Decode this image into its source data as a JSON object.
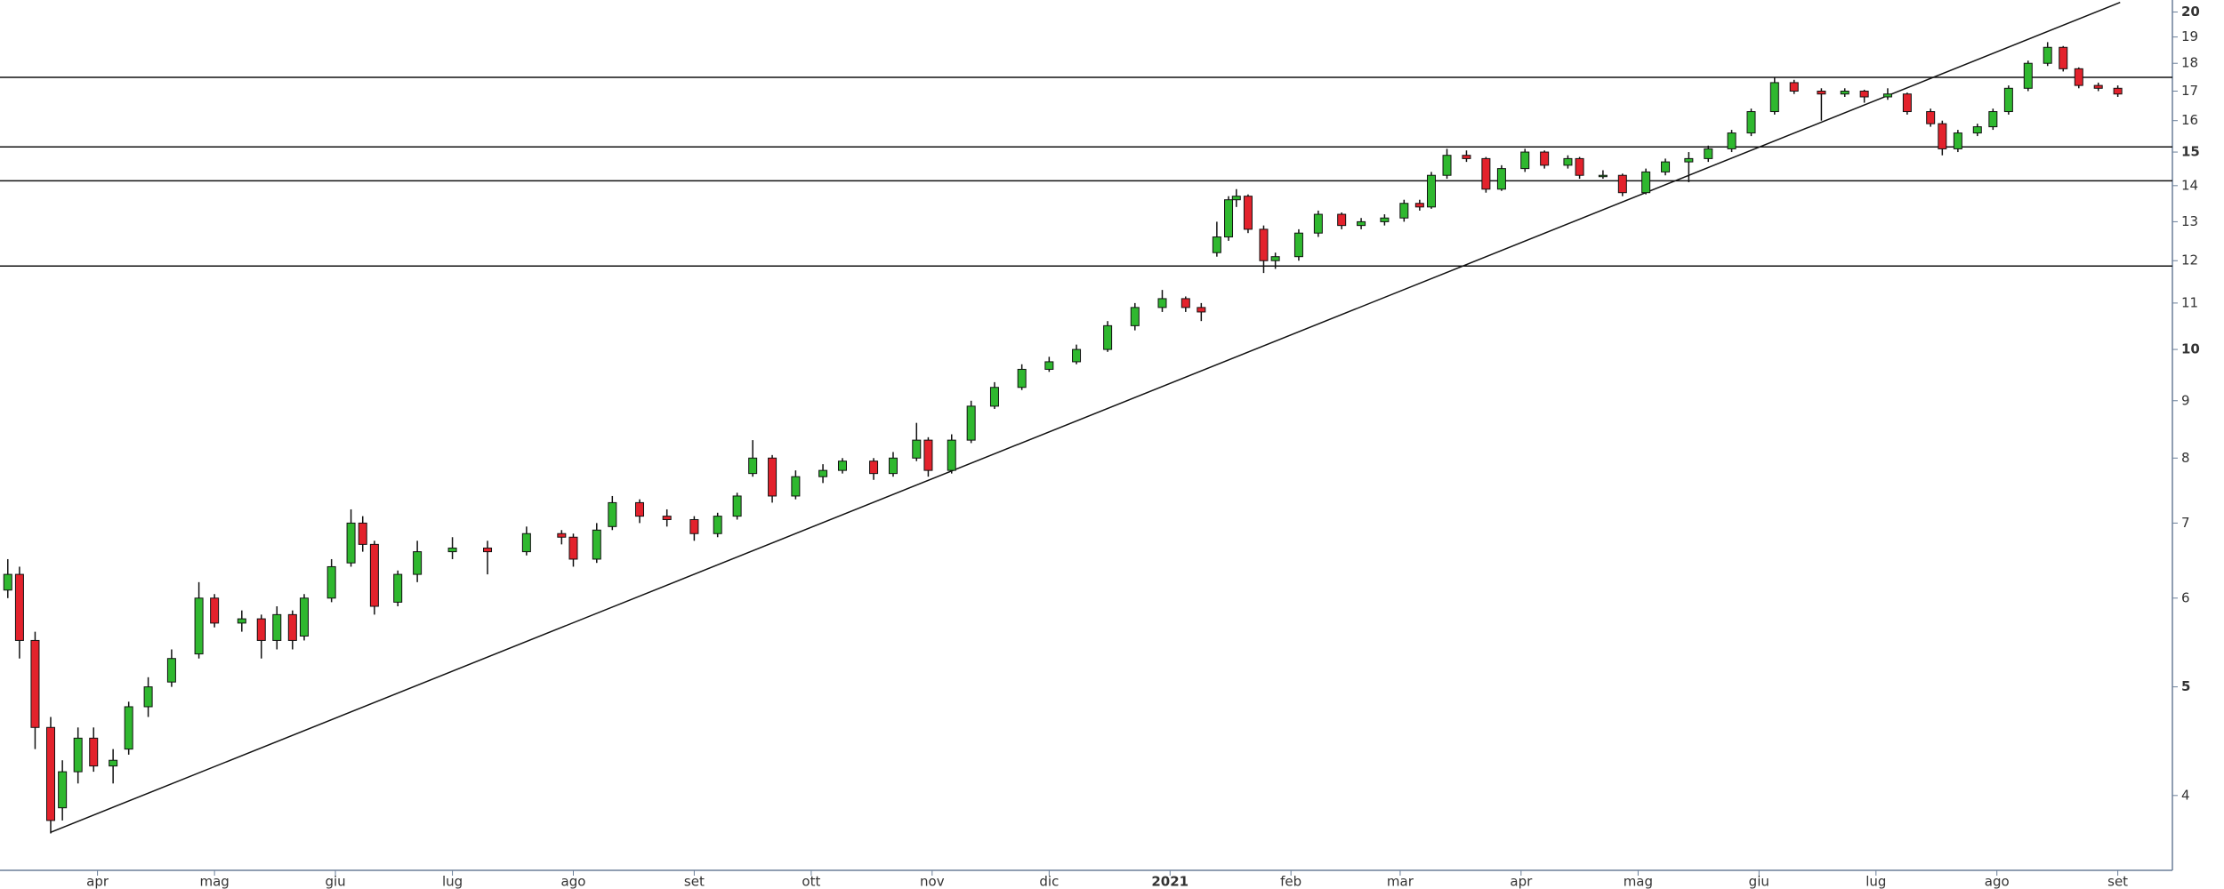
{
  "chart_data": {
    "type": "candlestick",
    "log_scale": true,
    "up_color": "#2fb82f",
    "down_color": "#e3222c",
    "line_color": "#111111",
    "xlim": [
      0,
      557
    ],
    "ylim": [
      3.43,
      20.5
    ],
    "yticks": [
      4,
      5,
      6,
      7,
      8,
      9,
      10,
      11,
      12,
      13,
      14,
      15,
      16,
      17,
      18,
      19,
      20
    ],
    "xticks": [
      {
        "value": 25,
        "label": "apr"
      },
      {
        "value": 55,
        "label": "mag"
      },
      {
        "value": 86,
        "label": "giu"
      },
      {
        "value": 116,
        "label": "lug"
      },
      {
        "value": 147,
        "label": "ago"
      },
      {
        "value": 178,
        "label": "set"
      },
      {
        "value": 208,
        "label": "ott"
      },
      {
        "value": 239,
        "label": "nov"
      },
      {
        "value": 269,
        "label": "dic"
      },
      {
        "value": 300,
        "label": "2021"
      },
      {
        "value": 331,
        "label": "feb"
      },
      {
        "value": 359,
        "label": "mar"
      },
      {
        "value": 390,
        "label": "apr"
      },
      {
        "value": 420,
        "label": "mag"
      },
      {
        "value": 451,
        "label": "giu"
      },
      {
        "value": 481,
        "label": "lug"
      },
      {
        "value": 512,
        "label": "ago"
      },
      {
        "value": 543,
        "label": "set"
      }
    ],
    "hlines": [
      17.49,
      15.16,
      14.14,
      11.87
    ],
    "trendline": {
      "x": [
        13.1,
        543.6
      ],
      "y": [
        3.71,
        20.4
      ]
    },
    "x": [
      2,
      5,
      9,
      13,
      16,
      20,
      24,
      29,
      33,
      38,
      44,
      51,
      55,
      62,
      67,
      71,
      75,
      78,
      85,
      90,
      93,
      96,
      102,
      107,
      116,
      125,
      135,
      144,
      147,
      153,
      157,
      164,
      171,
      178,
      184,
      189,
      193,
      198,
      204,
      211,
      216,
      224,
      229,
      235,
      238,
      244,
      249,
      255,
      262,
      269,
      276,
      284,
      291,
      298,
      304,
      308,
      312,
      315,
      317,
      320,
      324,
      327,
      333,
      338,
      344,
      349,
      355,
      360,
      364,
      367,
      371,
      376,
      381,
      385,
      391,
      396,
      402,
      405,
      411,
      416,
      422,
      427,
      433,
      438,
      444,
      449,
      455,
      460,
      467,
      473,
      478,
      484,
      489,
      495,
      498,
      502,
      507,
      511,
      515,
      520,
      525,
      529,
      533,
      538,
      543
    ],
    "open": [
      6.1,
      6.3,
      5.5,
      4.6,
      3.9,
      4.2,
      4.5,
      4.25,
      4.4,
      4.8,
      5.05,
      5.35,
      6.0,
      5.7,
      5.75,
      5.5,
      5.8,
      5.55,
      6.0,
      6.45,
      7.0,
      6.7,
      5.95,
      6.3,
      6.6,
      6.65,
      6.6,
      6.85,
      6.8,
      6.5,
      6.95,
      7.3,
      7.1,
      7.05,
      6.85,
      7.1,
      7.75,
      8.0,
      7.4,
      7.7,
      7.8,
      7.95,
      7.75,
      8.0,
      8.3,
      7.8,
      8.3,
      8.9,
      9.25,
      9.6,
      9.75,
      10.0,
      10.5,
      10.9,
      11.1,
      10.9,
      12.2,
      12.6,
      13.6,
      13.7,
      12.8,
      12.0,
      12.1,
      12.7,
      13.2,
      12.9,
      13.0,
      13.1,
      13.5,
      13.4,
      14.3,
      14.9,
      14.8,
      13.9,
      14.5,
      15.0,
      14.6,
      14.8,
      14.3,
      14.3,
      13.8,
      14.4,
      14.7,
      14.8,
      15.1,
      15.6,
      16.3,
      17.3,
      17.0,
      16.9,
      17.0,
      16.8,
      16.9,
      16.3,
      15.9,
      15.1,
      15.6,
      15.8,
      16.3,
      17.1,
      18.0,
      18.6,
      17.8,
      17.2,
      17.1
    ],
    "high": [
      6.5,
      6.4,
      5.6,
      4.7,
      4.3,
      4.6,
      4.6,
      4.4,
      4.85,
      5.1,
      5.4,
      6.2,
      6.05,
      5.85,
      5.8,
      5.9,
      5.85,
      6.05,
      6.5,
      7.2,
      7.1,
      6.75,
      6.35,
      6.75,
      6.8,
      6.75,
      6.95,
      6.9,
      6.85,
      7.0,
      7.4,
      7.35,
      7.2,
      7.1,
      7.15,
      7.45,
      8.3,
      8.05,
      7.8,
      7.9,
      8.0,
      8.0,
      8.1,
      8.6,
      8.35,
      8.4,
      9.0,
      9.35,
      9.7,
      9.85,
      10.1,
      10.6,
      11.0,
      11.3,
      11.15,
      11.0,
      13.0,
      13.7,
      13.9,
      13.75,
      12.9,
      12.2,
      12.8,
      13.3,
      13.25,
      13.1,
      13.2,
      13.6,
      13.6,
      14.4,
      15.1,
      15.05,
      14.85,
      14.6,
      15.1,
      15.05,
      14.9,
      14.85,
      14.45,
      14.35,
      14.5,
      14.8,
      15.0,
      15.2,
      15.7,
      16.4,
      17.5,
      17.4,
      17.1,
      17.1,
      17.05,
      17.1,
      16.95,
      16.4,
      16.0,
      15.7,
      15.9,
      16.4,
      17.2,
      18.1,
      18.8,
      18.65,
      17.85,
      17.3,
      17.2
    ],
    "low": [
      6.0,
      5.3,
      4.4,
      3.7,
      3.8,
      4.1,
      4.2,
      4.1,
      4.35,
      4.7,
      5.0,
      5.3,
      5.65,
      5.6,
      5.3,
      5.4,
      5.4,
      5.5,
      5.95,
      6.4,
      6.6,
      5.8,
      5.9,
      6.2,
      6.5,
      6.3,
      6.55,
      6.7,
      6.4,
      6.45,
      6.9,
      7.0,
      6.95,
      6.75,
      6.8,
      7.05,
      7.7,
      7.3,
      7.35,
      7.6,
      7.75,
      7.65,
      7.7,
      7.95,
      7.7,
      7.75,
      8.25,
      8.85,
      9.2,
      9.55,
      9.7,
      9.95,
      10.4,
      10.8,
      10.8,
      10.6,
      12.1,
      12.5,
      13.4,
      12.7,
      11.7,
      11.8,
      12.0,
      12.6,
      12.8,
      12.8,
      12.9,
      13.0,
      13.3,
      13.35,
      14.2,
      14.7,
      13.8,
      13.85,
      14.4,
      14.5,
      14.5,
      14.2,
      14.2,
      13.7,
      13.75,
      14.3,
      14.1,
      14.7,
      15.0,
      15.5,
      16.2,
      16.9,
      16.0,
      16.8,
      16.6,
      16.7,
      16.2,
      15.8,
      14.9,
      15.0,
      15.5,
      15.7,
      16.2,
      17.0,
      17.9,
      17.7,
      17.1,
      17.0,
      16.8
    ],
    "close": [
      6.3,
      5.5,
      4.6,
      3.8,
      4.2,
      4.5,
      4.25,
      4.3,
      4.8,
      5.0,
      5.3,
      6.0,
      5.7,
      5.75,
      5.5,
      5.8,
      5.5,
      6.0,
      6.4,
      7.0,
      6.7,
      5.9,
      6.3,
      6.6,
      6.65,
      6.6,
      6.85,
      6.8,
      6.5,
      6.9,
      7.3,
      7.1,
      7.05,
      6.85,
      7.1,
      7.4,
      8.0,
      7.4,
      7.7,
      7.8,
      7.95,
      7.75,
      8.0,
      8.3,
      7.8,
      8.3,
      8.9,
      9.25,
      9.6,
      9.75,
      10.0,
      10.5,
      10.9,
      11.1,
      10.9,
      10.8,
      12.6,
      13.6,
      13.7,
      12.8,
      12.0,
      12.1,
      12.7,
      13.2,
      12.9,
      13.0,
      13.1,
      13.5,
      13.4,
      14.3,
      14.9,
      14.8,
      13.9,
      14.5,
      15.0,
      14.6,
      14.8,
      14.3,
      14.3,
      13.8,
      14.4,
      14.7,
      14.8,
      15.1,
      15.6,
      16.3,
      17.3,
      17.0,
      16.9,
      17.0,
      16.8,
      16.9,
      16.3,
      15.9,
      15.1,
      15.6,
      15.8,
      16.3,
      17.1,
      18.0,
      18.6,
      17.8,
      17.2,
      17.1,
      16.9
    ]
  }
}
